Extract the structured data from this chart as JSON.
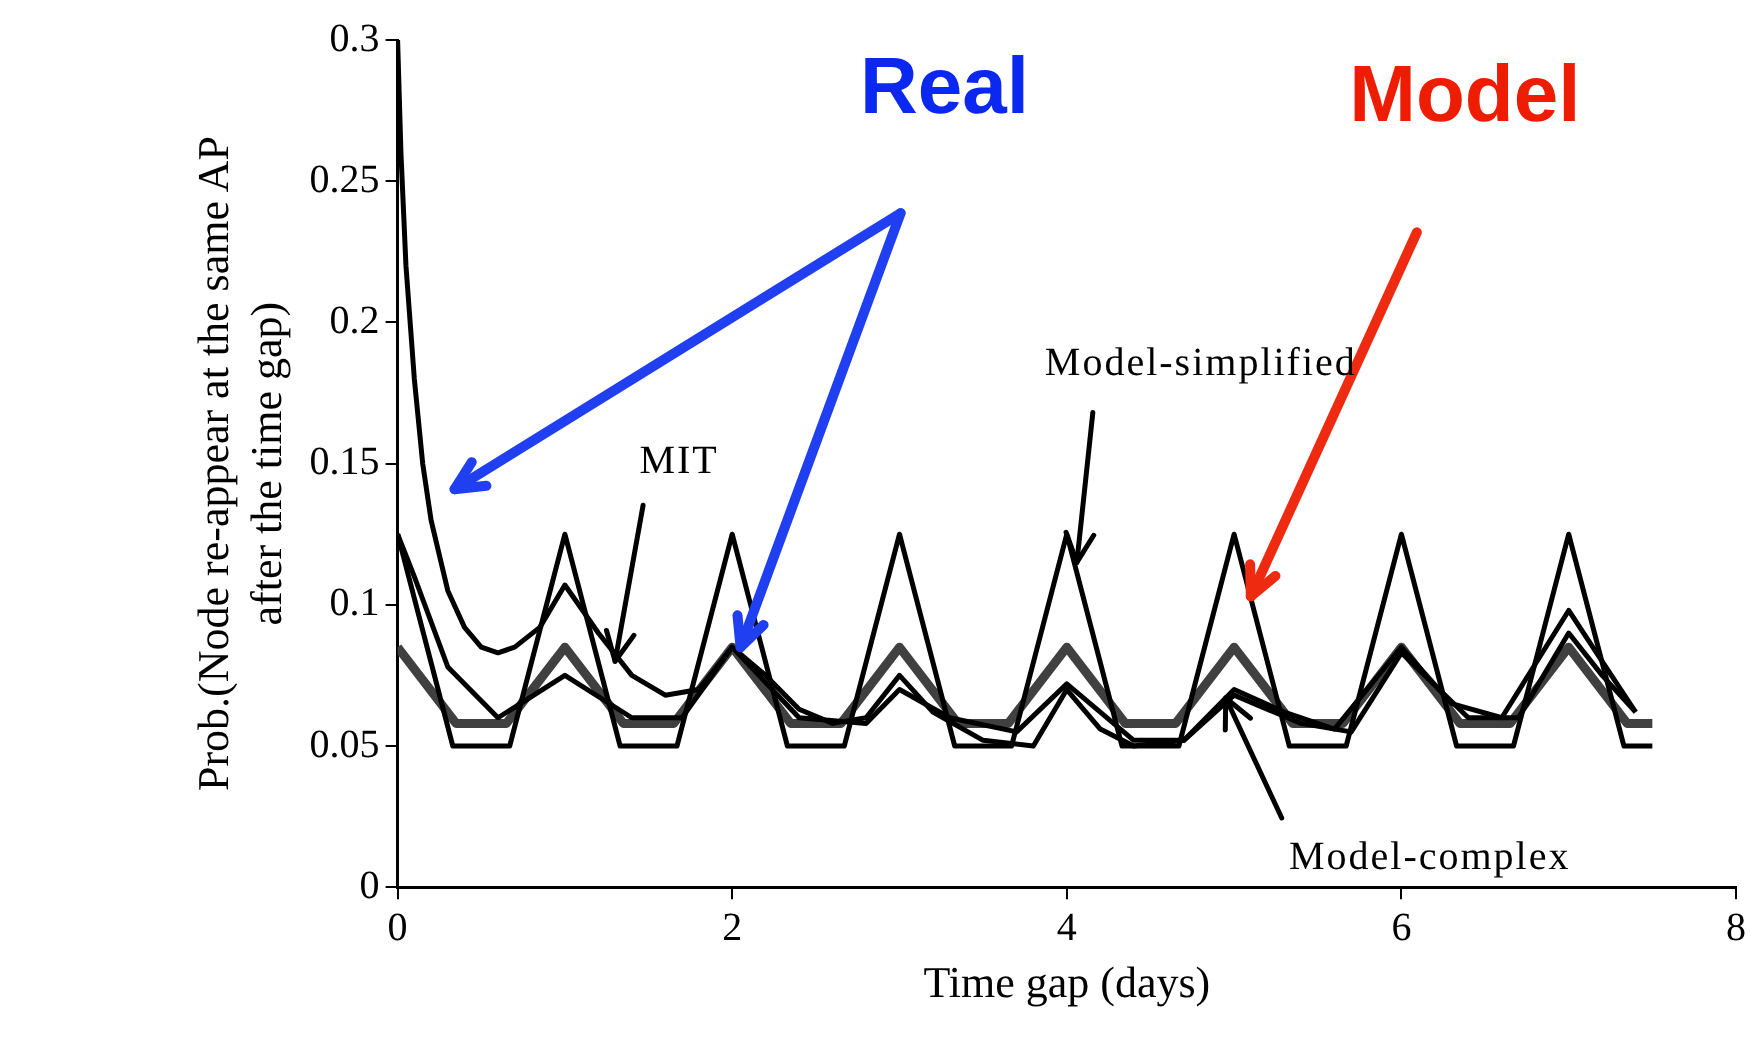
{
  "chart_data": {
    "type": "line",
    "xlabel": "Time gap (days)",
    "ylabel": "Prob.(Node re-appear at the same AP after the time gap)",
    "xlim": [
      0,
      8
    ],
    "xticks": [
      0,
      2,
      4,
      6,
      8
    ],
    "ylim": [
      0,
      0.3
    ],
    "yticks": [
      0,
      0.05,
      0.1,
      0.15,
      0.2,
      0.25,
      0.3
    ],
    "grid": false,
    "legend": false,
    "marker": "none",
    "series": [
      {
        "color": "#000000",
        "x": [
          0,
          0.02,
          0.05,
          0.1,
          0.15,
          0.2,
          0.3,
          0.4,
          0.5,
          0.6,
          0.7,
          0.85,
          1,
          1.2,
          1.4,
          1.6,
          1.8,
          2,
          2.2,
          2.4,
          2.6,
          2.8,
          3,
          3.2,
          3.5,
          3.8,
          4,
          4.2,
          4.4,
          4.7,
          5,
          5.3,
          5.6,
          6,
          6.3,
          6.6,
          7,
          7.2,
          7.4
        ],
        "values": [
          0.3,
          0.26,
          0.22,
          0.18,
          0.15,
          0.13,
          0.105,
          0.092,
          0.085,
          0.083,
          0.085,
          0.092,
          0.107,
          0.09,
          0.075,
          0.068,
          0.07,
          0.085,
          0.075,
          0.063,
          0.058,
          0.06,
          0.075,
          0.062,
          0.052,
          0.05,
          0.07,
          0.056,
          0.05,
          0.052,
          0.07,
          0.062,
          0.056,
          0.085,
          0.065,
          0.06,
          0.098,
          0.08,
          0.062
        ]
      },
      {
        "color": "#000000",
        "x": [
          0,
          0.1,
          0.3,
          0.6,
          1,
          1.4,
          1.7,
          2,
          2.4,
          2.8,
          3,
          3.3,
          3.7,
          4,
          4.4,
          4.7,
          5,
          5.4,
          5.7,
          6,
          6.4,
          6.7,
          7,
          7.2,
          7.4
        ],
        "values": [
          0.125,
          0.11,
          0.078,
          0.06,
          0.075,
          0.06,
          0.06,
          0.085,
          0.06,
          0.058,
          0.07,
          0.06,
          0.055,
          0.072,
          0.052,
          0.052,
          0.068,
          0.058,
          0.055,
          0.083,
          0.06,
          0.06,
          0.09,
          0.075,
          0.062
        ]
      },
      {
        "color": "#000000",
        "x": [
          0,
          0.33,
          0.67,
          1,
          1.33,
          1.67,
          2,
          2.33,
          2.67,
          3,
          3.33,
          3.67,
          4,
          4.33,
          4.67,
          5,
          5.33,
          5.67,
          6,
          6.33,
          6.67,
          7,
          7.33,
          7.5
        ],
        "values": [
          0.125,
          0.05,
          0.05,
          0.125,
          0.05,
          0.05,
          0.125,
          0.05,
          0.05,
          0.125,
          0.05,
          0.05,
          0.125,
          0.05,
          0.05,
          0.125,
          0.05,
          0.05,
          0.125,
          0.05,
          0.05,
          0.125,
          0.05,
          0.05
        ]
      },
      {
        "color": "#404040",
        "x": [
          0,
          0.35,
          0.65,
          1,
          1.35,
          1.65,
          2,
          2.35,
          2.65,
          3,
          3.35,
          3.65,
          4,
          4.35,
          4.65,
          5,
          5.35,
          5.65,
          6,
          6.35,
          6.65,
          7,
          7.35,
          7.5
        ],
        "values": [
          0.085,
          0.058,
          0.058,
          0.085,
          0.058,
          0.058,
          0.085,
          0.058,
          0.058,
          0.085,
          0.058,
          0.058,
          0.085,
          0.058,
          0.058,
          0.085,
          0.058,
          0.058,
          0.085,
          0.058,
          0.058,
          0.085,
          0.058,
          0.058
        ]
      }
    ],
    "annotations": [
      {
        "text": "Real",
        "x": 2.05,
        "y": 0.085
      },
      {
        "text": "Model",
        "x": 5.1,
        "y": 0.103
      },
      {
        "text": "MIT",
        "x": 1.3,
        "y": 0.08
      },
      {
        "text": "Model-simplified",
        "x": 4.06,
        "y": 0.115
      },
      {
        "text": "Model-complex",
        "x": 4.95,
        "y": 0.067
      }
    ]
  }
}
